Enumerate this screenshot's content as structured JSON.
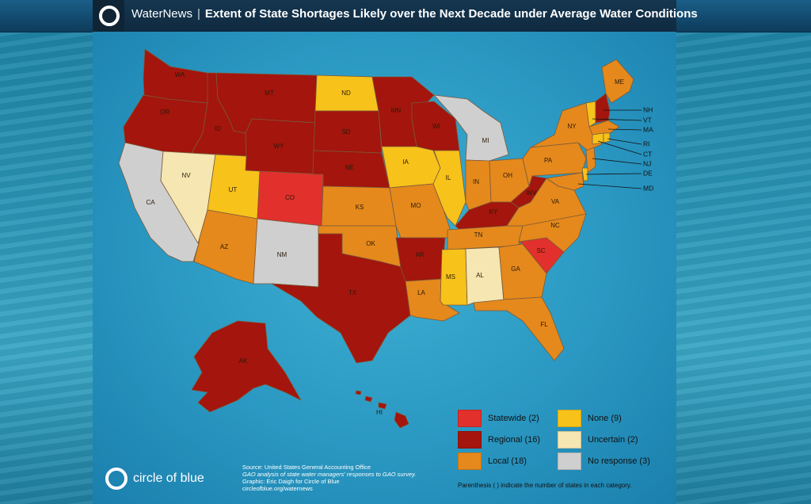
{
  "header": {
    "brand": "WaterNews",
    "separator": "|",
    "title": "Extent of State Shortages Likely over the Next Decade under Average Water Conditions"
  },
  "colors": {
    "statewide": "#e2302c",
    "regional": "#a3150d",
    "local": "#e5891c",
    "none": "#f7c21a",
    "uncertain": "#f5e6b2",
    "no_response": "#cfcfcf"
  },
  "legend": {
    "items": [
      {
        "key": "statewide",
        "label": "Statewide (2)"
      },
      {
        "key": "regional",
        "label": "Regional (16)"
      },
      {
        "key": "local",
        "label": "Local (18)"
      },
      {
        "key": "none",
        "label": "None (9)"
      },
      {
        "key": "uncertain",
        "label": "Uncertain (2)"
      },
      {
        "key": "no_response",
        "label": "No response (3)"
      }
    ],
    "note": "Parenthesis ( ) indicate the number of states in each category."
  },
  "source": {
    "line1": "Source: United States General Accounting Office",
    "line2": "GAO analysis of state water managers' responses to GAO survey.",
    "line3": "Graphic: Eric Daigh for Circle of Blue",
    "line4": "circleofblue.org/waternews"
  },
  "brand_footer": "circle of blue",
  "states": [
    {
      "abbr": "WA",
      "cat": "regional"
    },
    {
      "abbr": "OR",
      "cat": "regional"
    },
    {
      "abbr": "CA",
      "cat": "no_response"
    },
    {
      "abbr": "ID",
      "cat": "regional"
    },
    {
      "abbr": "NV",
      "cat": "uncertain"
    },
    {
      "abbr": "MT",
      "cat": "regional"
    },
    {
      "abbr": "WY",
      "cat": "regional"
    },
    {
      "abbr": "UT",
      "cat": "none"
    },
    {
      "abbr": "AZ",
      "cat": "local"
    },
    {
      "abbr": "CO",
      "cat": "statewide"
    },
    {
      "abbr": "NM",
      "cat": "no_response"
    },
    {
      "abbr": "ND",
      "cat": "none"
    },
    {
      "abbr": "SD",
      "cat": "regional"
    },
    {
      "abbr": "NE",
      "cat": "regional"
    },
    {
      "abbr": "KS",
      "cat": "local"
    },
    {
      "abbr": "OK",
      "cat": "local"
    },
    {
      "abbr": "TX",
      "cat": "regional"
    },
    {
      "abbr": "MN",
      "cat": "regional"
    },
    {
      "abbr": "IA",
      "cat": "none"
    },
    {
      "abbr": "MO",
      "cat": "local"
    },
    {
      "abbr": "AR",
      "cat": "regional"
    },
    {
      "abbr": "LA",
      "cat": "local"
    },
    {
      "abbr": "WI",
      "cat": "regional"
    },
    {
      "abbr": "IL",
      "cat": "none"
    },
    {
      "abbr": "MI",
      "cat": "no_response"
    },
    {
      "abbr": "IN",
      "cat": "local"
    },
    {
      "abbr": "OH",
      "cat": "local"
    },
    {
      "abbr": "KY",
      "cat": "regional"
    },
    {
      "abbr": "TN",
      "cat": "local"
    },
    {
      "abbr": "MS",
      "cat": "none"
    },
    {
      "abbr": "AL",
      "cat": "uncertain"
    },
    {
      "abbr": "GA",
      "cat": "local"
    },
    {
      "abbr": "FL",
      "cat": "local"
    },
    {
      "abbr": "SC",
      "cat": "statewide"
    },
    {
      "abbr": "NC",
      "cat": "local"
    },
    {
      "abbr": "VA",
      "cat": "local"
    },
    {
      "abbr": "WV",
      "cat": "regional"
    },
    {
      "abbr": "PA",
      "cat": "local"
    },
    {
      "abbr": "NY",
      "cat": "local"
    },
    {
      "abbr": "ME",
      "cat": "local"
    },
    {
      "abbr": "NH",
      "cat": "regional"
    },
    {
      "abbr": "VT",
      "cat": "none"
    },
    {
      "abbr": "MA",
      "cat": "local"
    },
    {
      "abbr": "RI",
      "cat": "none"
    },
    {
      "abbr": "CT",
      "cat": "none"
    },
    {
      "abbr": "NJ",
      "cat": "local"
    },
    {
      "abbr": "DE",
      "cat": "none"
    },
    {
      "abbr": "MD",
      "cat": "local"
    },
    {
      "abbr": "AK",
      "cat": "regional"
    },
    {
      "abbr": "HI",
      "cat": "regional"
    }
  ]
}
